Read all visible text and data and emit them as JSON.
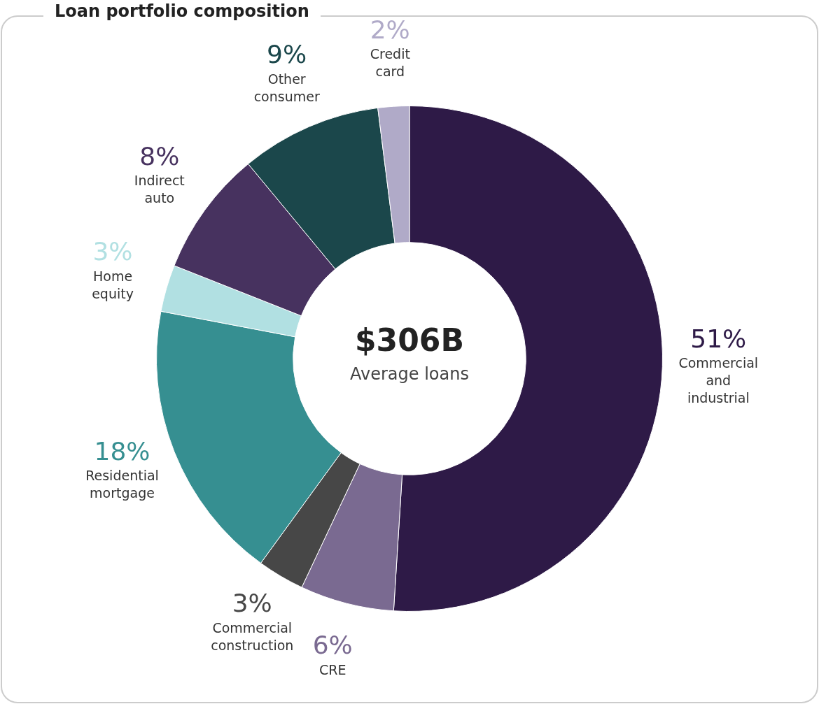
{
  "chart_data": {
    "type": "donut",
    "title": "Loan portfolio composition",
    "categories": [
      "Commercial and industrial",
      "CRE",
      "Commercial construction",
      "Residential mortgage",
      "Home equity",
      "Indirect auto",
      "Other consumer",
      "Credit card"
    ],
    "values": [
      51,
      6,
      3,
      18,
      3,
      8,
      9,
      2
    ],
    "colors": [
      "#2e1a47",
      "#7a6a91",
      "#474747",
      "#368f91",
      "#b1e0e2",
      "#47325f",
      "#1b474b",
      "#b0aac8"
    ],
    "value_labels": [
      "51%",
      "6%",
      "3%",
      "18%",
      "3%",
      "8%",
      "9%",
      "2%"
    ],
    "legend": false,
    "annotations": [
      "$306B",
      "Average loans"
    ]
  }
}
